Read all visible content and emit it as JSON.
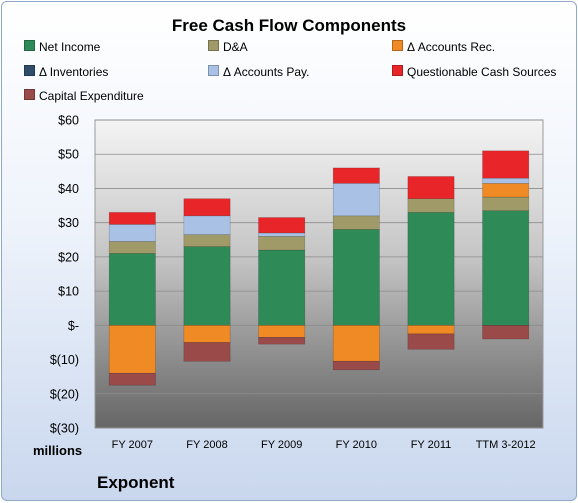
{
  "chart_data": {
    "type": "bar",
    "stacked": true,
    "title": "Free Cash Flow Components",
    "units_label": "millions",
    "brand": "Exponent",
    "categories": [
      "FY 2007",
      "FY 2008",
      "FY 2009",
      "FY 2010",
      "FY 2011",
      "TTM 3-2012"
    ],
    "ylim": [
      -30,
      60
    ],
    "yticks": [
      60,
      50,
      40,
      30,
      20,
      10,
      0,
      -10,
      -20,
      -30
    ],
    "ytick_labels": [
      "$60",
      "$50",
      "$40",
      "$30",
      "$20",
      "$10",
      "$-",
      "$(10)",
      "$(20)",
      "$(30)"
    ],
    "grid": true,
    "legend_position": "top",
    "series": [
      {
        "name": "Net Income",
        "color": "#2e8b57",
        "values": [
          21,
          23,
          22,
          28,
          33,
          33.5
        ]
      },
      {
        "name": "D&A",
        "color": "#a09a68",
        "values": [
          3.5,
          3.5,
          4,
          4,
          4,
          4
        ]
      },
      {
        "name": "Δ Accounts Rec.",
        "color": "#f08a24",
        "values": [
          -14,
          -5,
          -3.5,
          -10.5,
          -2.5,
          4
        ]
      },
      {
        "name": "Δ Inventories",
        "color": "#2f4d6b",
        "values": [
          0,
          0,
          0,
          0,
          0,
          0
        ]
      },
      {
        "name": "Δ Accounts Pay.",
        "color": "#a8c1e4",
        "values": [
          5,
          5.5,
          1,
          9.5,
          0,
          1.5
        ]
      },
      {
        "name": "Questionable Cash Sources",
        "color": "#e8262a",
        "values": [
          3.5,
          5,
          4.5,
          4.5,
          6.5,
          8
        ]
      },
      {
        "name": "Capital Expenditure",
        "color": "#9b4a4a",
        "values": [
          -3.5,
          -5.5,
          -2,
          -2.5,
          -4.5,
          -4
        ]
      }
    ]
  }
}
